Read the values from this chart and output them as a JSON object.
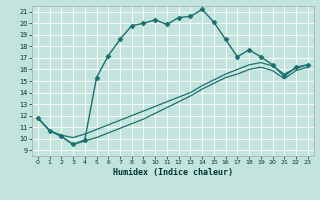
{
  "xlabel": "Humidex (Indice chaleur)",
  "ylabel": "",
  "bg_color": "#c2e4dc",
  "grid_color": "#d8ece6",
  "line_color": "#1a7070",
  "xlim": [
    -0.5,
    23.5
  ],
  "ylim": [
    8.5,
    21.5
  ],
  "yticks": [
    9,
    10,
    11,
    12,
    13,
    14,
    15,
    16,
    17,
    18,
    19,
    20,
    21
  ],
  "xticks": [
    0,
    1,
    2,
    3,
    4,
    5,
    6,
    7,
    8,
    9,
    10,
    11,
    12,
    13,
    14,
    15,
    16,
    17,
    18,
    19,
    20,
    21,
    22,
    23
  ],
  "series": [
    {
      "x": [
        0,
        1,
        2,
        3,
        4,
        5,
        6,
        7,
        8,
        9,
        10,
        11,
        12,
        13,
        14,
        15,
        16,
        17,
        18,
        19,
        20,
        21,
        22,
        23
      ],
      "y": [
        11.8,
        10.7,
        10.2,
        9.5,
        9.9,
        15.3,
        17.2,
        18.6,
        19.8,
        20.0,
        20.3,
        19.9,
        20.5,
        20.6,
        21.2,
        20.1,
        18.6,
        17.1,
        17.7,
        17.1,
        16.4,
        15.4,
        16.2,
        16.4
      ],
      "marker": "D",
      "markersize": 2.5,
      "linewidth": 1.0
    },
    {
      "x": [
        0,
        1,
        2,
        3,
        4,
        5,
        6,
        7,
        8,
        9,
        10,
        11,
        12,
        13,
        14,
        15,
        16,
        17,
        18,
        19,
        20,
        21,
        22,
        23
      ],
      "y": [
        11.8,
        10.7,
        10.3,
        10.1,
        10.4,
        10.8,
        11.2,
        11.6,
        12.0,
        12.4,
        12.8,
        13.2,
        13.6,
        14.0,
        14.6,
        15.1,
        15.6,
        16.0,
        16.4,
        16.6,
        16.3,
        15.6,
        16.1,
        16.4
      ],
      "marker": null,
      "markersize": 0,
      "linewidth": 0.9
    },
    {
      "x": [
        0,
        1,
        2,
        3,
        4,
        5,
        6,
        7,
        8,
        9,
        10,
        11,
        12,
        13,
        14,
        15,
        16,
        17,
        18,
        19,
        20,
        21,
        22,
        23
      ],
      "y": [
        11.8,
        10.7,
        10.2,
        9.5,
        9.8,
        10.1,
        10.5,
        10.9,
        11.3,
        11.7,
        12.2,
        12.7,
        13.2,
        13.7,
        14.3,
        14.8,
        15.3,
        15.6,
        16.0,
        16.2,
        15.9,
        15.2,
        15.9,
        16.2
      ],
      "marker": null,
      "markersize": 0,
      "linewidth": 0.9
    }
  ]
}
